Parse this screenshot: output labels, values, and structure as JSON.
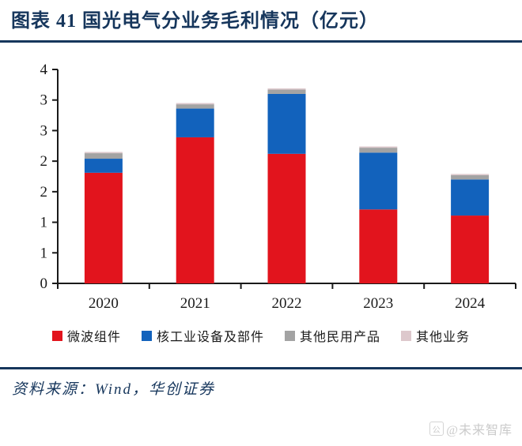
{
  "header": {
    "title": "图表 41  国光电气分业务毛利情况（亿元）"
  },
  "chart_data": {
    "type": "bar",
    "stacked": true,
    "title": "国光电气分业务毛利情况",
    "unit": "亿元",
    "categories": [
      "2020",
      "2021",
      "2022",
      "2023",
      "2024"
    ],
    "series": [
      {
        "name": "微波组件",
        "color": "#e2141d",
        "values": [
          1.81,
          2.39,
          2.12,
          1.21,
          1.11
        ]
      },
      {
        "name": "核工业设备及部件",
        "color": "#1262bc",
        "values": [
          0.23,
          0.47,
          0.98,
          0.93,
          0.59
        ]
      },
      {
        "name": "其他民用产品",
        "color": "#a3a3a3",
        "values": [
          0.09,
          0.07,
          0.07,
          0.08,
          0.07
        ]
      },
      {
        "name": "其他业务",
        "color": "#ddc8cc",
        "values": [
          0.02,
          0.02,
          0.02,
          0.02,
          0.02
        ]
      }
    ],
    "totals": [
      2.15,
      2.95,
      3.19,
      2.24,
      1.79
    ],
    "xlabel": "",
    "ylabel": "",
    "ylim": [
      0,
      3.5
    ],
    "ytick_step": 0.5,
    "ytick_labels_top_to_bottom": [
      "4",
      "3",
      "3",
      "2",
      "2",
      "1",
      "1",
      "0"
    ],
    "grid": false,
    "legend_position": "bottom",
    "axis_color": "#1a1a1a"
  },
  "footer": {
    "source": "资料来源：Wind，华创证券"
  },
  "watermark": {
    "logo": "公",
    "text": "@未来智库"
  }
}
